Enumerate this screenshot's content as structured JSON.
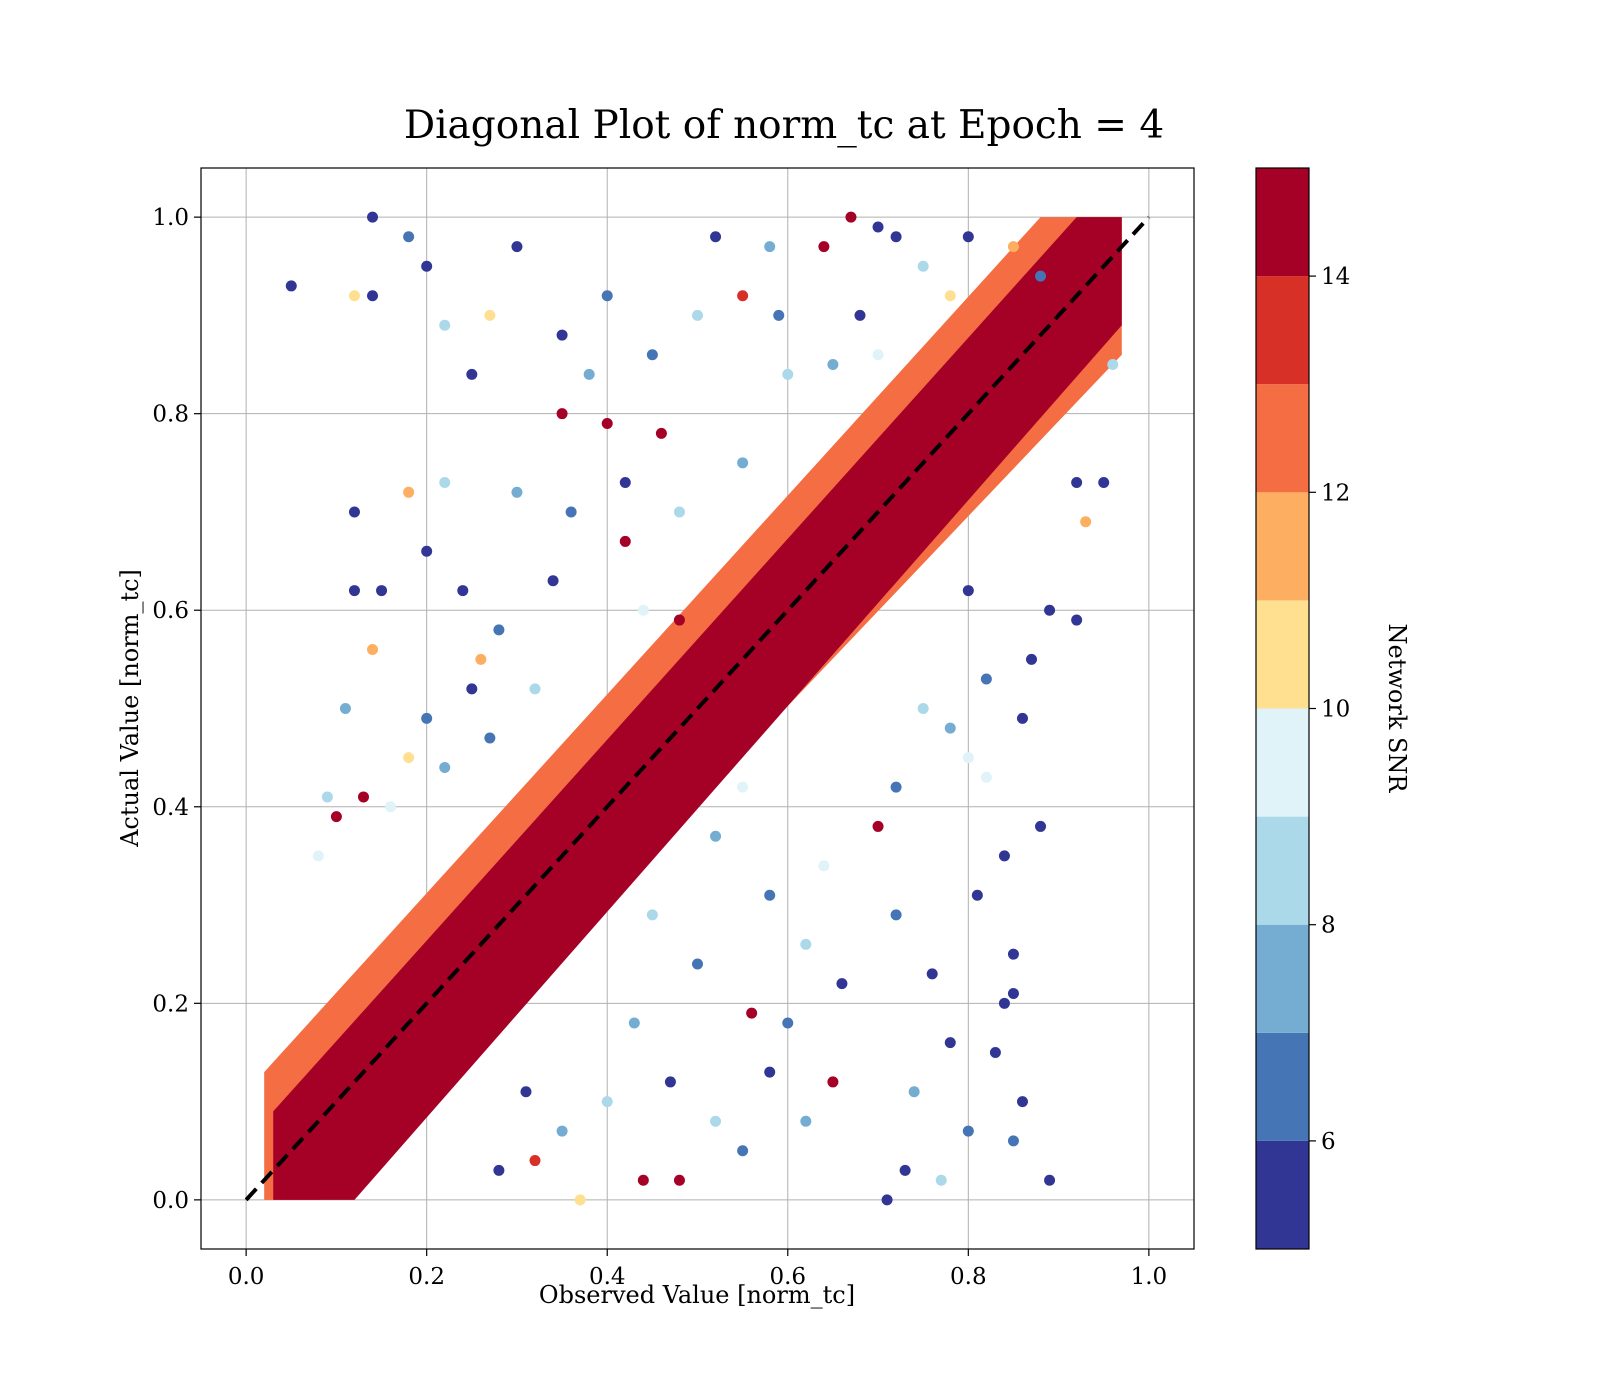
{
  "chart_data": {
    "type": "scatter",
    "title": "Diagonal Plot of norm_tc at Epoch = 4",
    "xlabel": "Observed Value [norm_tc]",
    "ylabel": "Actual Value [norm_tc]",
    "xlim": [
      -0.05,
      1.05
    ],
    "ylim": [
      -0.05,
      1.05
    ],
    "xticks": [
      "0.0",
      "0.2",
      "0.4",
      "0.6",
      "0.8",
      "1.0"
    ],
    "yticks": [
      "0.0",
      "0.2",
      "0.4",
      "0.6",
      "0.8",
      "1.0"
    ],
    "x_tick_values": [
      0.0,
      0.2,
      0.4,
      0.6,
      0.8,
      1.0
    ],
    "y_tick_values": [
      0.0,
      0.2,
      0.4,
      0.6,
      0.8,
      1.0
    ],
    "grid": true,
    "reference_line": {
      "style": "dashed",
      "color": "#000000",
      "from": [
        0,
        0
      ],
      "to": [
        1,
        1
      ]
    },
    "colorbar": {
      "label": "Network SNR",
      "range": [
        5,
        15
      ],
      "ticks": [
        "6",
        "8",
        "10",
        "12",
        "14"
      ],
      "tick_values": [
        6,
        8,
        10,
        12,
        14
      ],
      "levels": [
        5,
        6,
        7,
        8,
        9,
        10,
        11,
        12,
        13,
        14,
        15
      ],
      "colors": [
        "#313695",
        "#4575b4",
        "#74add1",
        "#abd9e9",
        "#e0f3f8",
        "#fee090",
        "#fdae61",
        "#f46d43",
        "#d73027",
        "#a50026"
      ]
    },
    "points": [
      [
        0.05,
        0.93,
        5.4
      ],
      [
        0.14,
        1.0,
        5.6
      ],
      [
        0.12,
        0.92,
        10.5
      ],
      [
        0.14,
        0.92,
        5.3
      ],
      [
        0.18,
        0.98,
        6.2
      ],
      [
        0.2,
        0.95,
        5.5
      ],
      [
        0.22,
        0.89,
        8.1
      ],
      [
        0.25,
        0.84,
        5.2
      ],
      [
        0.3,
        0.97,
        5.8
      ],
      [
        0.27,
        0.9,
        10.3
      ],
      [
        0.2,
        0.66,
        5.4
      ],
      [
        0.12,
        0.7,
        5.5
      ],
      [
        0.12,
        0.62,
        5.6
      ],
      [
        0.15,
        0.62,
        5.4
      ],
      [
        0.14,
        0.56,
        11.7
      ],
      [
        0.11,
        0.5,
        7.9
      ],
      [
        0.09,
        0.41,
        8.4
      ],
      [
        0.1,
        0.39,
        14.5
      ],
      [
        0.08,
        0.35,
        9.0
      ],
      [
        0.13,
        0.41,
        14.3
      ],
      [
        0.18,
        0.72,
        11.5
      ],
      [
        0.22,
        0.73,
        8.6
      ],
      [
        0.24,
        0.62,
        5.9
      ],
      [
        0.26,
        0.55,
        11.2
      ],
      [
        0.18,
        0.45,
        10.5
      ],
      [
        0.35,
        0.8,
        14.8
      ],
      [
        0.4,
        0.79,
        14.5
      ],
      [
        0.42,
        0.73,
        5.3
      ],
      [
        0.46,
        0.78,
        14.6
      ],
      [
        0.42,
        0.67,
        14.4
      ],
      [
        0.48,
        0.59,
        14.7
      ],
      [
        0.55,
        0.92,
        13.0
      ],
      [
        0.59,
        0.9,
        6.1
      ],
      [
        0.64,
        0.97,
        14.3
      ],
      [
        0.68,
        0.9,
        5.7
      ],
      [
        0.7,
        0.99,
        5.4
      ],
      [
        0.67,
        1.0,
        14.6
      ],
      [
        0.72,
        0.98,
        5.2
      ],
      [
        0.8,
        0.98,
        5.8
      ],
      [
        0.85,
        0.97,
        11.1
      ],
      [
        0.88,
        0.94,
        6.3
      ],
      [
        0.92,
        0.73,
        5.3
      ],
      [
        0.95,
        0.73,
        5.2
      ],
      [
        0.93,
        0.69,
        11.3
      ],
      [
        0.96,
        0.85,
        8.0
      ],
      [
        0.92,
        0.59,
        5.3
      ],
      [
        0.89,
        0.6,
        5.6
      ],
      [
        0.87,
        0.55,
        5.4
      ],
      [
        0.8,
        0.62,
        5.5
      ],
      [
        0.88,
        0.38,
        5.2
      ],
      [
        0.86,
        0.49,
        5.5
      ],
      [
        0.82,
        0.43,
        9.6
      ],
      [
        0.84,
        0.35,
        5.3
      ],
      [
        0.81,
        0.31,
        5.4
      ],
      [
        0.85,
        0.25,
        5.3
      ],
      [
        0.85,
        0.21,
        5.2
      ],
      [
        0.84,
        0.2,
        5.6
      ],
      [
        0.83,
        0.15,
        5.5
      ],
      [
        0.86,
        0.1,
        5.4
      ],
      [
        0.85,
        0.06,
        6.4
      ],
      [
        0.89,
        0.02,
        5.2
      ],
      [
        0.8,
        0.07,
        6.7
      ],
      [
        0.77,
        0.02,
        8.2
      ],
      [
        0.73,
        0.03,
        5.3
      ],
      [
        0.71,
        0.0,
        5.2
      ],
      [
        0.7,
        0.38,
        14.7
      ],
      [
        0.65,
        0.12,
        14.2
      ],
      [
        0.56,
        0.19,
        14.6
      ],
      [
        0.48,
        0.02,
        14.8
      ],
      [
        0.44,
        0.02,
        14.3
      ],
      [
        0.31,
        0.11,
        5.8
      ],
      [
        0.37,
        0.0,
        10.4
      ],
      [
        0.32,
        0.04,
        13.2
      ],
      [
        0.28,
        0.03,
        5.5
      ],
      [
        0.35,
        0.07,
        7.2
      ],
      [
        0.52,
        0.37,
        7.8
      ],
      [
        0.58,
        0.31,
        6.5
      ],
      [
        0.62,
        0.26,
        8.7
      ],
      [
        0.64,
        0.34,
        9.2
      ],
      [
        0.6,
        0.18,
        6.1
      ],
      [
        0.66,
        0.22,
        5.2
      ],
      [
        0.72,
        0.29,
        6.3
      ],
      [
        0.76,
        0.23,
        5.3
      ],
      [
        0.74,
        0.11,
        7.1
      ],
      [
        0.78,
        0.16,
        5.6
      ],
      [
        0.47,
        0.12,
        5.4
      ],
      [
        0.52,
        0.08,
        8.8
      ],
      [
        0.55,
        0.05,
        6.9
      ],
      [
        0.58,
        0.13,
        5.7
      ],
      [
        0.62,
        0.08,
        7.6
      ],
      [
        0.4,
        0.1,
        8.3
      ],
      [
        0.43,
        0.18,
        7.7
      ],
      [
        0.5,
        0.24,
        6.6
      ],
      [
        0.45,
        0.29,
        8.5
      ],
      [
        0.55,
        0.42,
        9.5
      ],
      [
        0.32,
        0.52,
        8.1
      ],
      [
        0.28,
        0.58,
        6.3
      ],
      [
        0.34,
        0.63,
        5.3
      ],
      [
        0.3,
        0.72,
        7.4
      ],
      [
        0.36,
        0.7,
        6.7
      ],
      [
        0.38,
        0.84,
        7.5
      ],
      [
        0.45,
        0.86,
        6.0
      ],
      [
        0.5,
        0.9,
        8.9
      ],
      [
        0.4,
        0.92,
        6.2
      ],
      [
        0.35,
        0.88,
        5.6
      ],
      [
        0.55,
        0.75,
        7.8
      ],
      [
        0.48,
        0.7,
        8.4
      ],
      [
        0.44,
        0.6,
        9.1
      ],
      [
        0.6,
        0.84,
        8.0
      ],
      [
        0.65,
        0.85,
        7.0
      ],
      [
        0.7,
        0.86,
        9.3
      ],
      [
        0.75,
        0.95,
        8.2
      ],
      [
        0.78,
        0.92,
        10.8
      ],
      [
        0.58,
        0.97,
        7.3
      ],
      [
        0.52,
        0.98,
        5.5
      ],
      [
        0.22,
        0.44,
        7.3
      ],
      [
        0.2,
        0.49,
        6.9
      ],
      [
        0.16,
        0.4,
        9.4
      ],
      [
        0.25,
        0.52,
        5.9
      ],
      [
        0.27,
        0.47,
        6.4
      ],
      [
        0.78,
        0.48,
        7.0
      ],
      [
        0.75,
        0.5,
        8.6
      ],
      [
        0.72,
        0.42,
        6.7
      ],
      [
        0.8,
        0.45,
        9.2
      ],
      [
        0.82,
        0.53,
        6.0
      ]
    ]
  }
}
